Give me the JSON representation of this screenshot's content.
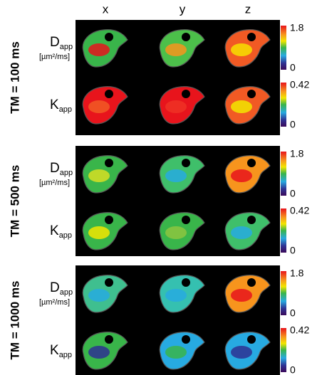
{
  "columns": [
    "x",
    "y",
    "z"
  ],
  "groups": [
    {
      "label": "TM = 100 ms",
      "rows": [
        {
          "symbol": "D",
          "subscript": "app",
          "unit": "[µm²/ms]",
          "scale_max": "1.8",
          "scale_min": "0"
        },
        {
          "symbol": "K",
          "subscript": "app",
          "scale_max": "0.42",
          "scale_min": "0"
        }
      ]
    },
    {
      "label": "TM = 500 ms",
      "rows": [
        {
          "symbol": "D",
          "subscript": "app",
          "unit": "[µm²/ms]",
          "scale_max": "1.8",
          "scale_min": "0"
        },
        {
          "symbol": "K",
          "subscript": "app",
          "scale_max": "0.42",
          "scale_min": "0"
        }
      ]
    },
    {
      "label": "TM = 1000 ms",
      "rows": [
        {
          "symbol": "D",
          "subscript": "app",
          "unit": "[µm²/ms]",
          "scale_max": "1.8",
          "scale_min": "0"
        },
        {
          "symbol": "K",
          "subscript": "app",
          "scale_max": "0.42",
          "scale_min": "0"
        }
      ]
    }
  ]
}
